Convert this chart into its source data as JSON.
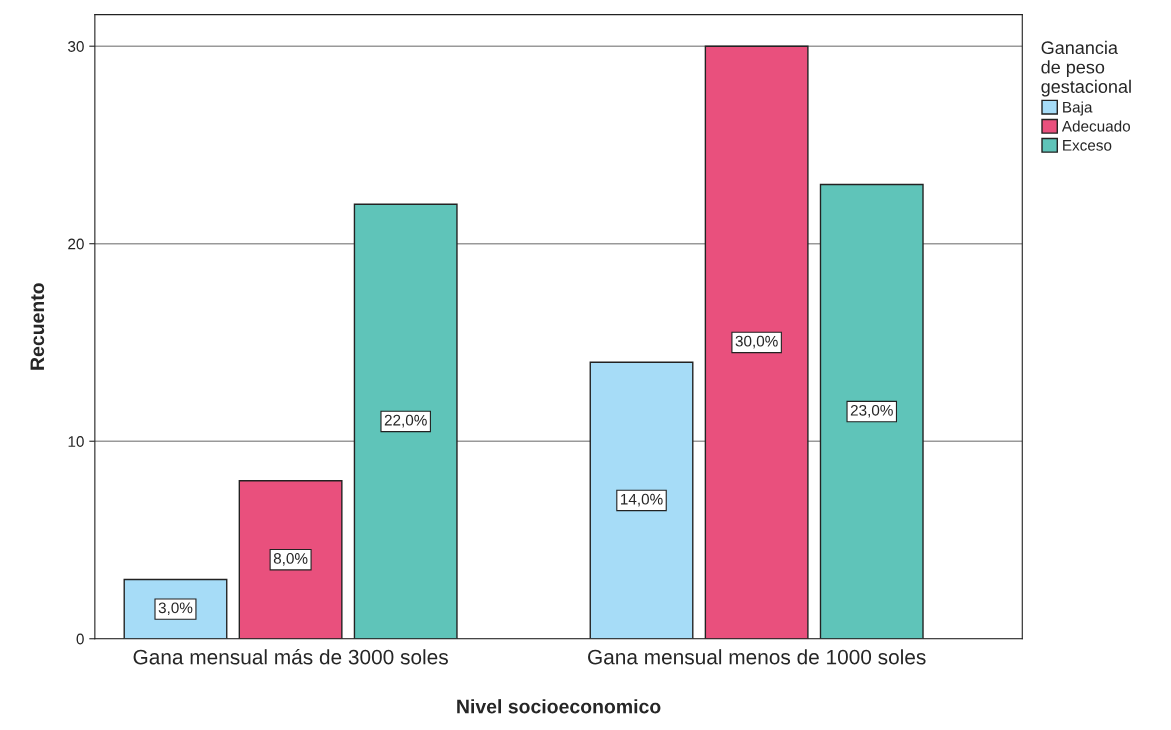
{
  "chart_data": {
    "type": "bar",
    "xlabel": "Nivel socioeconomico",
    "ylabel": "Recuento",
    "legend_title": "Ganancia\nde peso\ngestacional",
    "categories": [
      "Gana mensual más de 3000 soles",
      "Gana mensual menos de 1000 soles"
    ],
    "series": [
      {
        "name": "Baja",
        "color": "#a6dcf7",
        "values": [
          3,
          14
        ],
        "value_labels": [
          "3,0%",
          "14,0%"
        ]
      },
      {
        "name": "Adecuado",
        "color": "#e9507d",
        "values": [
          8,
          30
        ],
        "value_labels": [
          "8,0%",
          "30,0%"
        ]
      },
      {
        "name": "Exceso",
        "color": "#5fc4b9",
        "values": [
          22,
          23
        ],
        "value_labels": [
          "22,0%",
          "23,0%"
        ]
      }
    ],
    "ylim": [
      0,
      31.6
    ],
    "yticks": [
      0,
      10,
      20,
      30
    ],
    "grid": "y",
    "legend": "top right"
  }
}
